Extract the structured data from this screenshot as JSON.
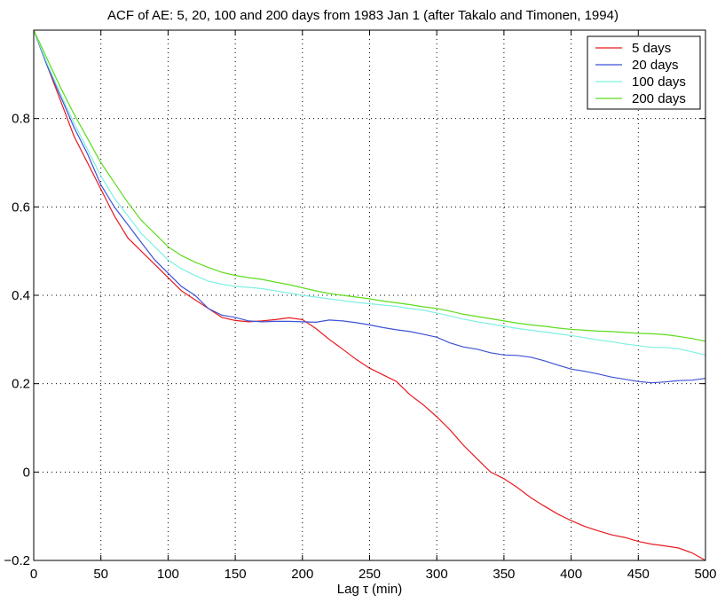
{
  "chart_data": {
    "type": "line",
    "title": "ACF of AE: 5, 20, 100 and 200 days  from 1983 Jan 1 (after Takalo and Timonen, 1994)",
    "xlabel": "Lag τ (min)",
    "ylabel": "",
    "xlim": [
      0,
      500
    ],
    "ylim": [
      -0.2,
      1.0
    ],
    "xticks": [
      0,
      50,
      100,
      150,
      200,
      250,
      300,
      350,
      400,
      450,
      500
    ],
    "yticks": [
      -0.2,
      0,
      0.2,
      0.4,
      0.6,
      0.8
    ],
    "xtick_labels": [
      "0",
      "50",
      "100",
      "150",
      "200",
      "250",
      "300",
      "350",
      "400",
      "450",
      "500"
    ],
    "ytick_labels": [
      "−0.2",
      "0",
      "0.2",
      "0.4",
      "0.6",
      "0.8"
    ],
    "grid": true,
    "legend_position": "top-right",
    "series": [
      {
        "name": "5 days",
        "color": "#e8191f",
        "x": [
          0,
          10,
          20,
          30,
          40,
          50,
          60,
          70,
          80,
          90,
          100,
          110,
          120,
          130,
          140,
          150,
          160,
          170,
          180,
          190,
          200,
          210,
          220,
          230,
          240,
          250,
          260,
          270,
          280,
          290,
          300,
          310,
          320,
          330,
          340,
          350,
          360,
          370,
          380,
          390,
          400,
          410,
          420,
          430,
          440,
          450,
          460,
          470,
          480,
          490,
          500
        ],
        "y": [
          1.0,
          0.92,
          0.84,
          0.76,
          0.7,
          0.64,
          0.58,
          0.53,
          0.5,
          0.47,
          0.44,
          0.41,
          0.39,
          0.37,
          0.35,
          0.343,
          0.34,
          0.342,
          0.345,
          0.349,
          0.345,
          0.325,
          0.3,
          0.278,
          0.255,
          0.235,
          0.22,
          0.205,
          0.175,
          0.152,
          0.125,
          0.095,
          0.06,
          0.03,
          0.0,
          -0.015,
          -0.035,
          -0.058,
          -0.077,
          -0.095,
          -0.11,
          -0.123,
          -0.133,
          -0.142,
          -0.148,
          -0.157,
          -0.163,
          -0.167,
          -0.172,
          -0.183,
          -0.2
        ]
      },
      {
        "name": "20 days",
        "color": "#3d52d5",
        "x": [
          0,
          10,
          20,
          30,
          40,
          50,
          60,
          70,
          80,
          90,
          100,
          110,
          120,
          130,
          140,
          150,
          160,
          170,
          180,
          190,
          200,
          210,
          220,
          230,
          240,
          250,
          260,
          270,
          280,
          290,
          300,
          310,
          320,
          330,
          340,
          350,
          360,
          370,
          380,
          390,
          400,
          410,
          420,
          430,
          440,
          450,
          460,
          470,
          480,
          490,
          500
        ],
        "y": [
          1.0,
          0.92,
          0.85,
          0.78,
          0.72,
          0.65,
          0.6,
          0.56,
          0.52,
          0.48,
          0.45,
          0.42,
          0.4,
          0.37,
          0.355,
          0.35,
          0.342,
          0.34,
          0.341,
          0.341,
          0.34,
          0.339,
          0.344,
          0.342,
          0.338,
          0.333,
          0.327,
          0.322,
          0.318,
          0.312,
          0.305,
          0.292,
          0.283,
          0.278,
          0.27,
          0.265,
          0.264,
          0.26,
          0.252,
          0.242,
          0.233,
          0.228,
          0.222,
          0.215,
          0.21,
          0.205,
          0.202,
          0.204,
          0.207,
          0.208,
          0.212
        ]
      },
      {
        "name": "100 days",
        "color": "#7ff0e2",
        "x": [
          0,
          10,
          20,
          30,
          40,
          50,
          60,
          70,
          80,
          90,
          100,
          110,
          120,
          130,
          140,
          150,
          160,
          170,
          180,
          190,
          200,
          210,
          220,
          230,
          240,
          250,
          260,
          270,
          280,
          290,
          300,
          310,
          320,
          330,
          340,
          350,
          360,
          370,
          380,
          390,
          400,
          410,
          420,
          430,
          440,
          450,
          460,
          470,
          480,
          490,
          500
        ],
        "y": [
          1.0,
          0.925,
          0.855,
          0.79,
          0.73,
          0.67,
          0.62,
          0.58,
          0.54,
          0.51,
          0.48,
          0.46,
          0.445,
          0.432,
          0.425,
          0.42,
          0.418,
          0.415,
          0.41,
          0.405,
          0.4,
          0.396,
          0.392,
          0.388,
          0.384,
          0.381,
          0.378,
          0.375,
          0.37,
          0.366,
          0.36,
          0.353,
          0.346,
          0.34,
          0.335,
          0.33,
          0.325,
          0.321,
          0.317,
          0.313,
          0.309,
          0.304,
          0.299,
          0.295,
          0.29,
          0.286,
          0.282,
          0.282,
          0.279,
          0.272,
          0.265
        ]
      },
      {
        "name": "200 days",
        "color": "#5ddc1c",
        "x": [
          0,
          10,
          20,
          30,
          40,
          50,
          60,
          70,
          80,
          90,
          100,
          110,
          120,
          130,
          140,
          150,
          160,
          170,
          180,
          190,
          200,
          210,
          220,
          230,
          240,
          250,
          260,
          270,
          280,
          290,
          300,
          310,
          320,
          330,
          340,
          350,
          360,
          370,
          380,
          390,
          400,
          410,
          420,
          430,
          440,
          450,
          460,
          470,
          480,
          490,
          500
        ],
        "y": [
          1.0,
          0.935,
          0.87,
          0.81,
          0.755,
          0.7,
          0.655,
          0.61,
          0.57,
          0.54,
          0.51,
          0.49,
          0.475,
          0.463,
          0.452,
          0.445,
          0.44,
          0.436,
          0.43,
          0.424,
          0.417,
          0.41,
          0.404,
          0.4,
          0.396,
          0.392,
          0.387,
          0.383,
          0.379,
          0.374,
          0.37,
          0.364,
          0.357,
          0.352,
          0.347,
          0.342,
          0.337,
          0.333,
          0.33,
          0.326,
          0.323,
          0.321,
          0.319,
          0.318,
          0.316,
          0.314,
          0.313,
          0.311,
          0.307,
          0.302,
          0.296
        ]
      }
    ]
  }
}
